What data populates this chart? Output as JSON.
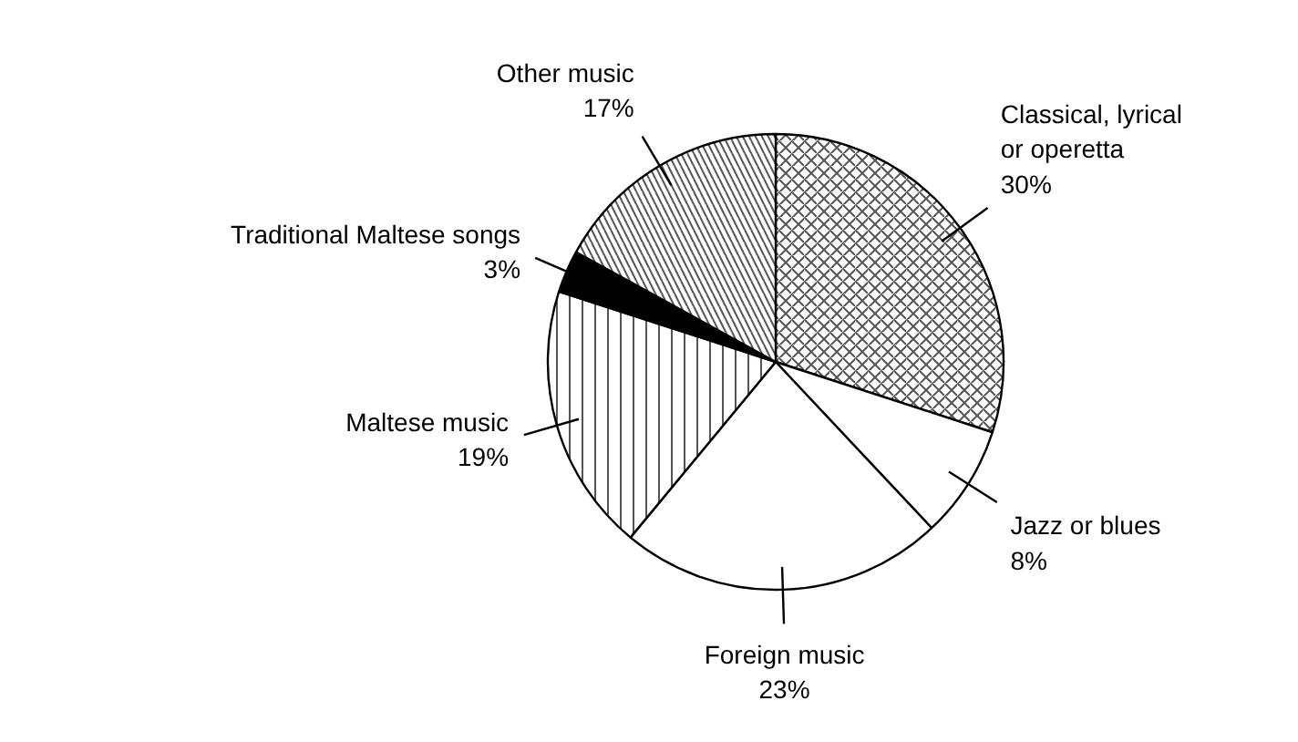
{
  "chart_data": {
    "type": "pie",
    "categories": [
      "Classical, lyrical or operetta",
      "Jazz or blues",
      "Foreign music",
      "Maltese music",
      "Traditional Maltese songs",
      "Other music"
    ],
    "values": [
      30,
      8,
      23,
      19,
      3,
      17
    ],
    "colors": [
      "#ffffff",
      "#ffffff",
      "#ffffff",
      "#ffffff",
      "#000000",
      "#ffffff"
    ],
    "value_labels": [
      "30%",
      "8%",
      "23%",
      "19%",
      "3%",
      "17%"
    ]
  }
}
